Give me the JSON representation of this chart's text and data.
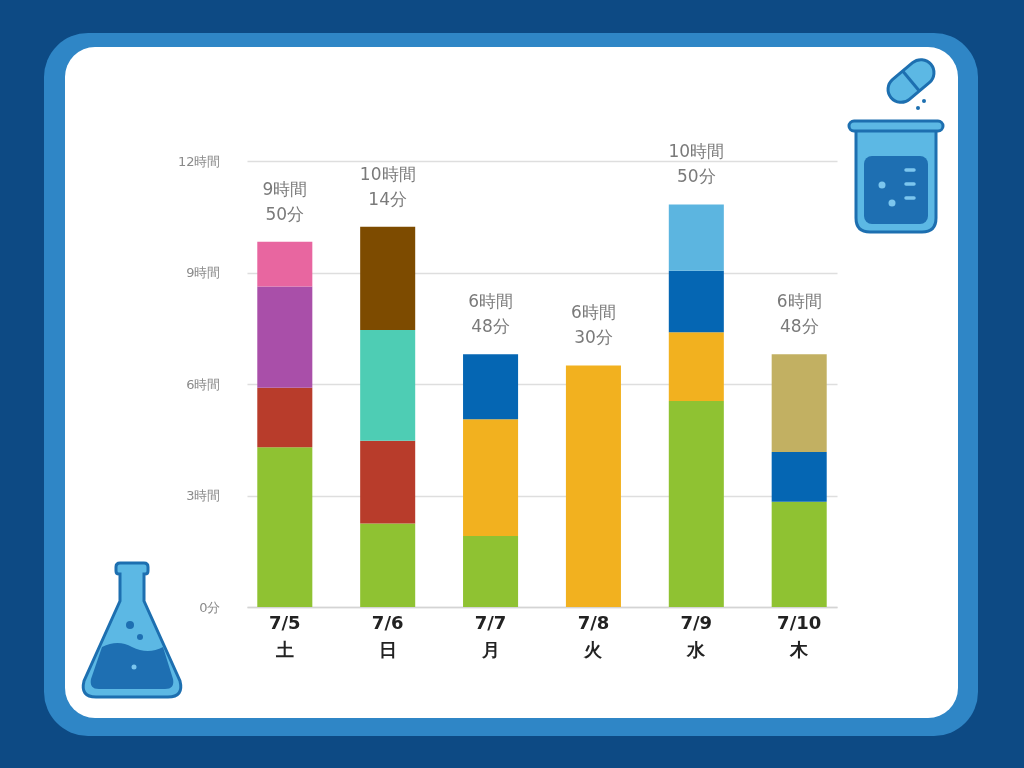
{
  "chart_data": {
    "type": "bar",
    "stacked": true,
    "categories": [
      "7/5\n土",
      "7/6\n日",
      "7/7\n月",
      "7/8\n火",
      "7/9\n水",
      "7/10\n木"
    ],
    "series": [
      {
        "color": "#8fc232",
        "values": [
          4.3,
          2.25,
          1.91,
          null,
          5.54,
          2.83
        ]
      },
      {
        "color": "#b83c2b",
        "values": [
          1.6,
          2.22,
          null,
          null,
          null,
          null
        ]
      },
      {
        "color": "#f2b11f",
        "values": [
          null,
          null,
          3.14,
          6.5,
          1.85,
          null
        ]
      },
      {
        "color": "#a94fa9",
        "values": [
          2.72,
          null,
          null,
          null,
          null,
          null
        ]
      },
      {
        "color": "#4ecdb4",
        "values": [
          null,
          2.98,
          null,
          null,
          null,
          null
        ]
      },
      {
        "color": "#0566b3",
        "values": [
          null,
          null,
          1.75,
          null,
          1.66,
          1.34
        ]
      },
      {
        "color": "#e866a0",
        "values": [
          1.21,
          null,
          null,
          null,
          null,
          null
        ]
      },
      {
        "color": "#7d4b00",
        "values": [
          null,
          2.78,
          null,
          null,
          null,
          null
        ]
      },
      {
        "color": "#5cb5e0",
        "values": [
          null,
          null,
          null,
          null,
          1.78,
          null
        ]
      },
      {
        "color": "#c2b062",
        "values": [
          null,
          null,
          null,
          null,
          null,
          2.63
        ]
      }
    ],
    "ylim": [
      0,
      12
    ],
    "yticks": [
      {
        "value": 0,
        "label": "0分"
      },
      {
        "value": 3,
        "label": "3時間"
      },
      {
        "value": 6,
        "label": "6時間"
      },
      {
        "value": 9,
        "label": "9時間"
      },
      {
        "value": 12,
        "label": "12時間"
      }
    ],
    "grid": "y",
    "totals": [
      "9時間\n50分",
      "10時間\n14分",
      "6時間\n48分",
      "6時間\n30分",
      "10時間\n50分",
      "6時間\n48分"
    ]
  }
}
